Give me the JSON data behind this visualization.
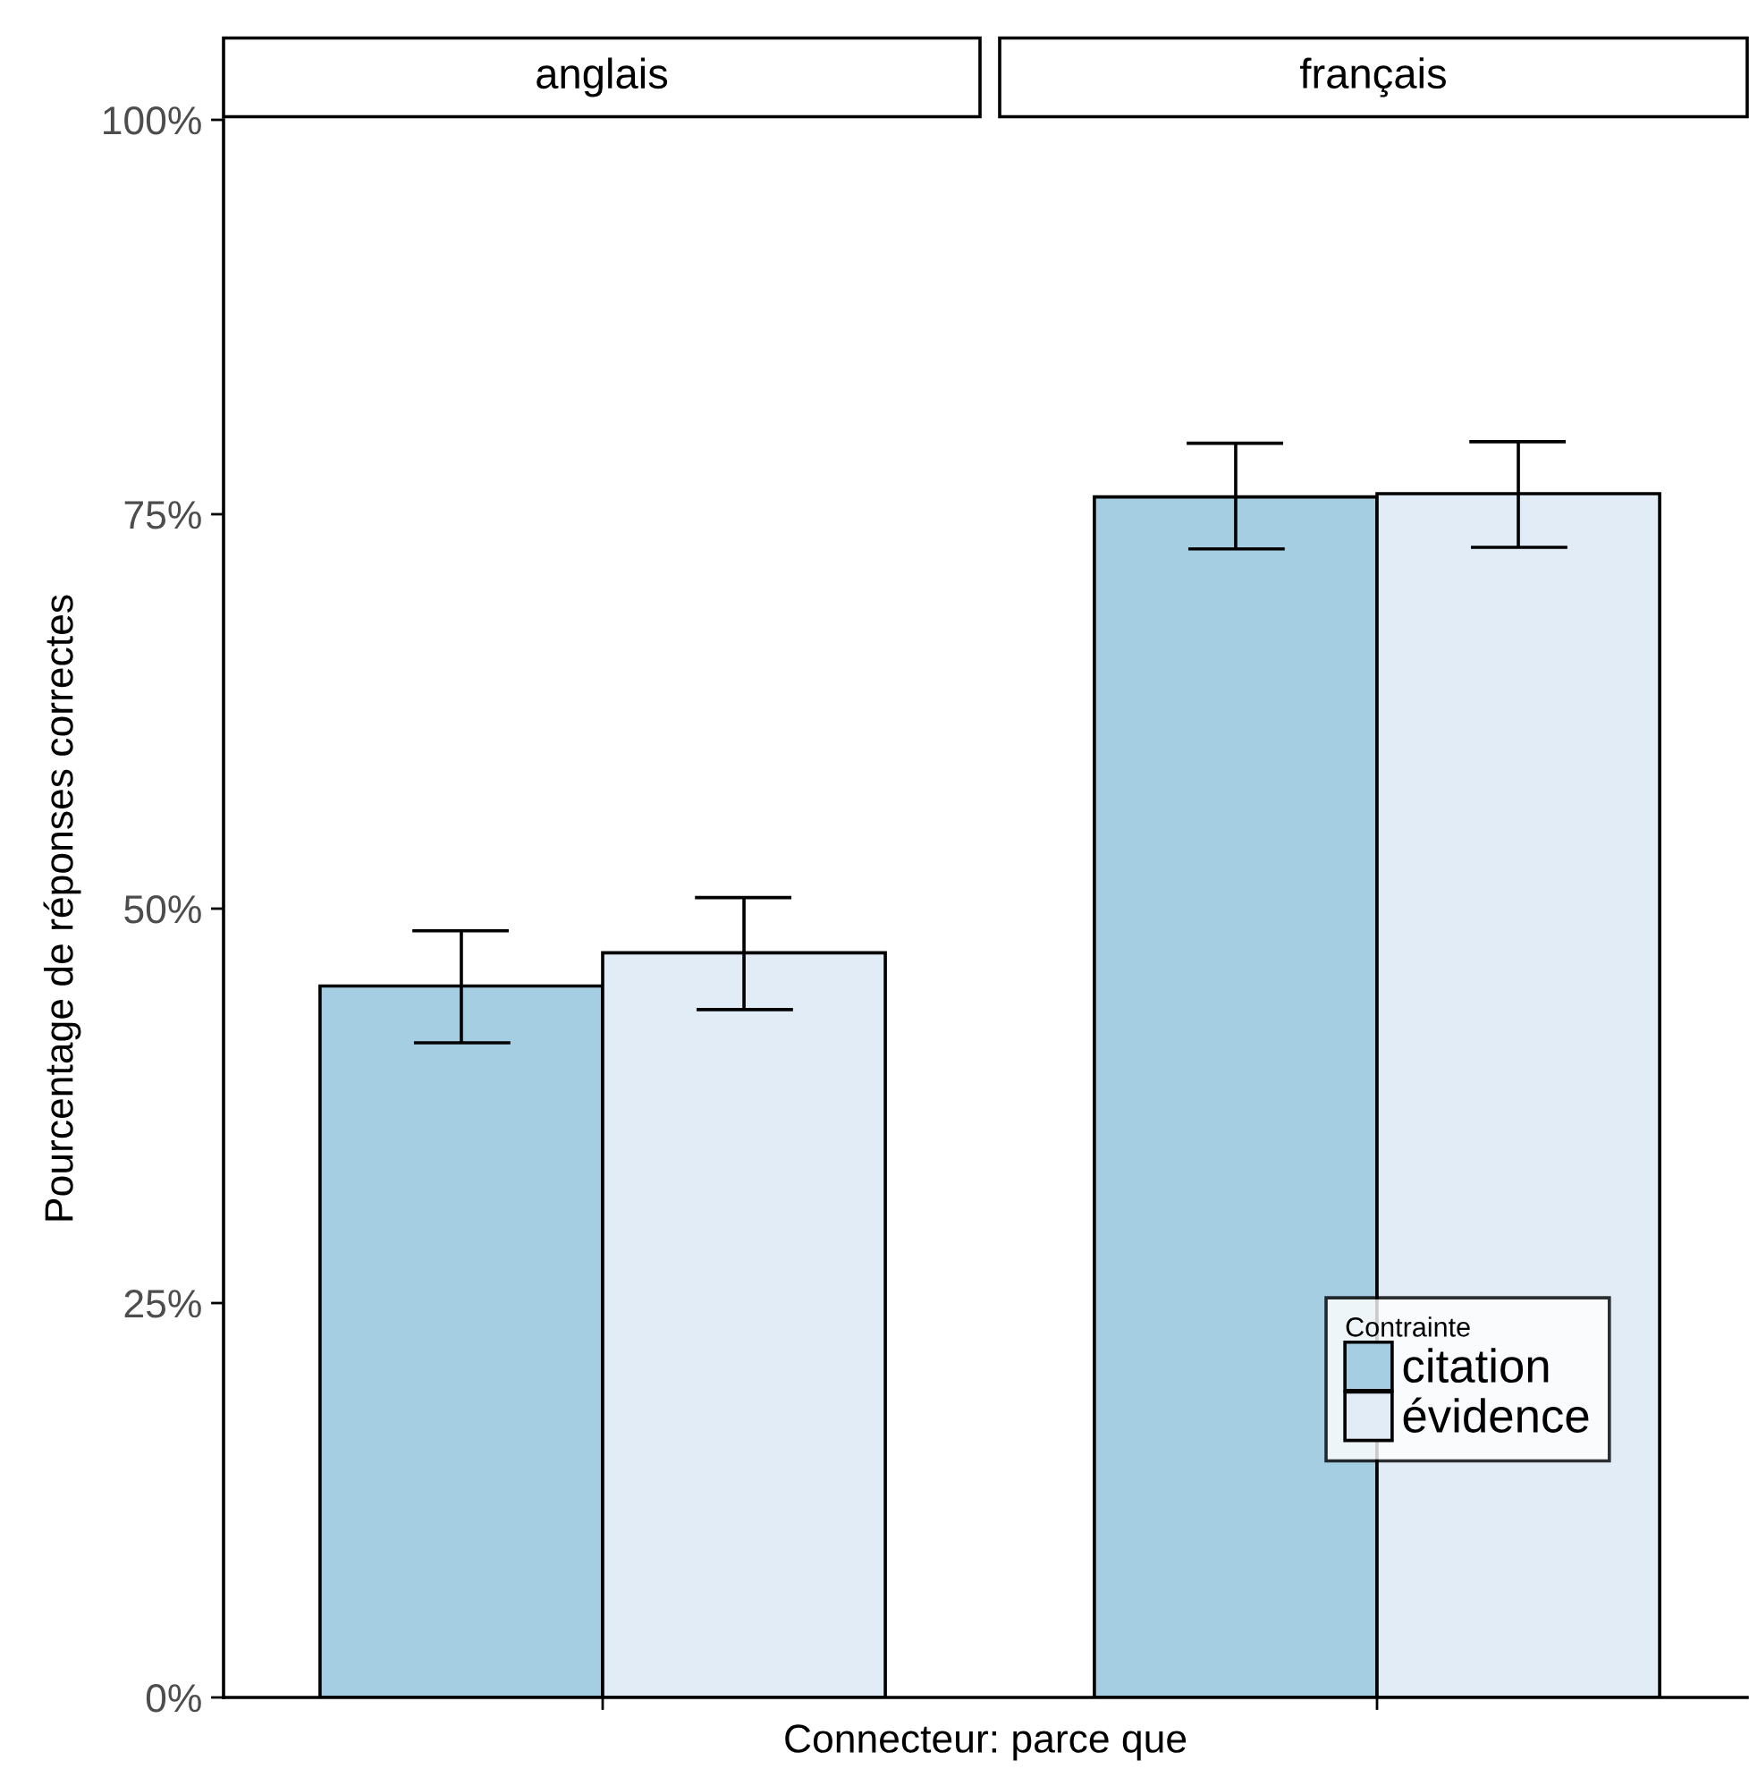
{
  "chart_data": {
    "type": "bar",
    "ylabel": "Pourcentage de réponses correctes",
    "xlabel": "Connecteur: parce que",
    "categories": [
      "anglais",
      "français"
    ],
    "ylim": [
      0,
      100
    ],
    "yticks": [
      {
        "value": 0,
        "label": "0%"
      },
      {
        "value": 25,
        "label": "25%"
      },
      {
        "value": 50,
        "label": "50%"
      },
      {
        "value": 75,
        "label": "75%"
      },
      {
        "value": 100,
        "label": "100%"
      }
    ],
    "grid": false,
    "legend": "bottom right",
    "legend_title": "Contrainte",
    "series": [
      {
        "name": "citation",
        "color": "#a6cee3",
        "values": [
          45.1,
          76.1
        ],
        "errors": [
          [
            41.5,
            48.6
          ],
          [
            72.8,
            79.5
          ]
        ]
      },
      {
        "name": "évidence",
        "color": "#e1ecf7",
        "values": [
          47.2,
          76.3
        ],
        "errors": [
          [
            43.6,
            50.7
          ],
          [
            72.9,
            79.6
          ]
        ]
      }
    ]
  }
}
